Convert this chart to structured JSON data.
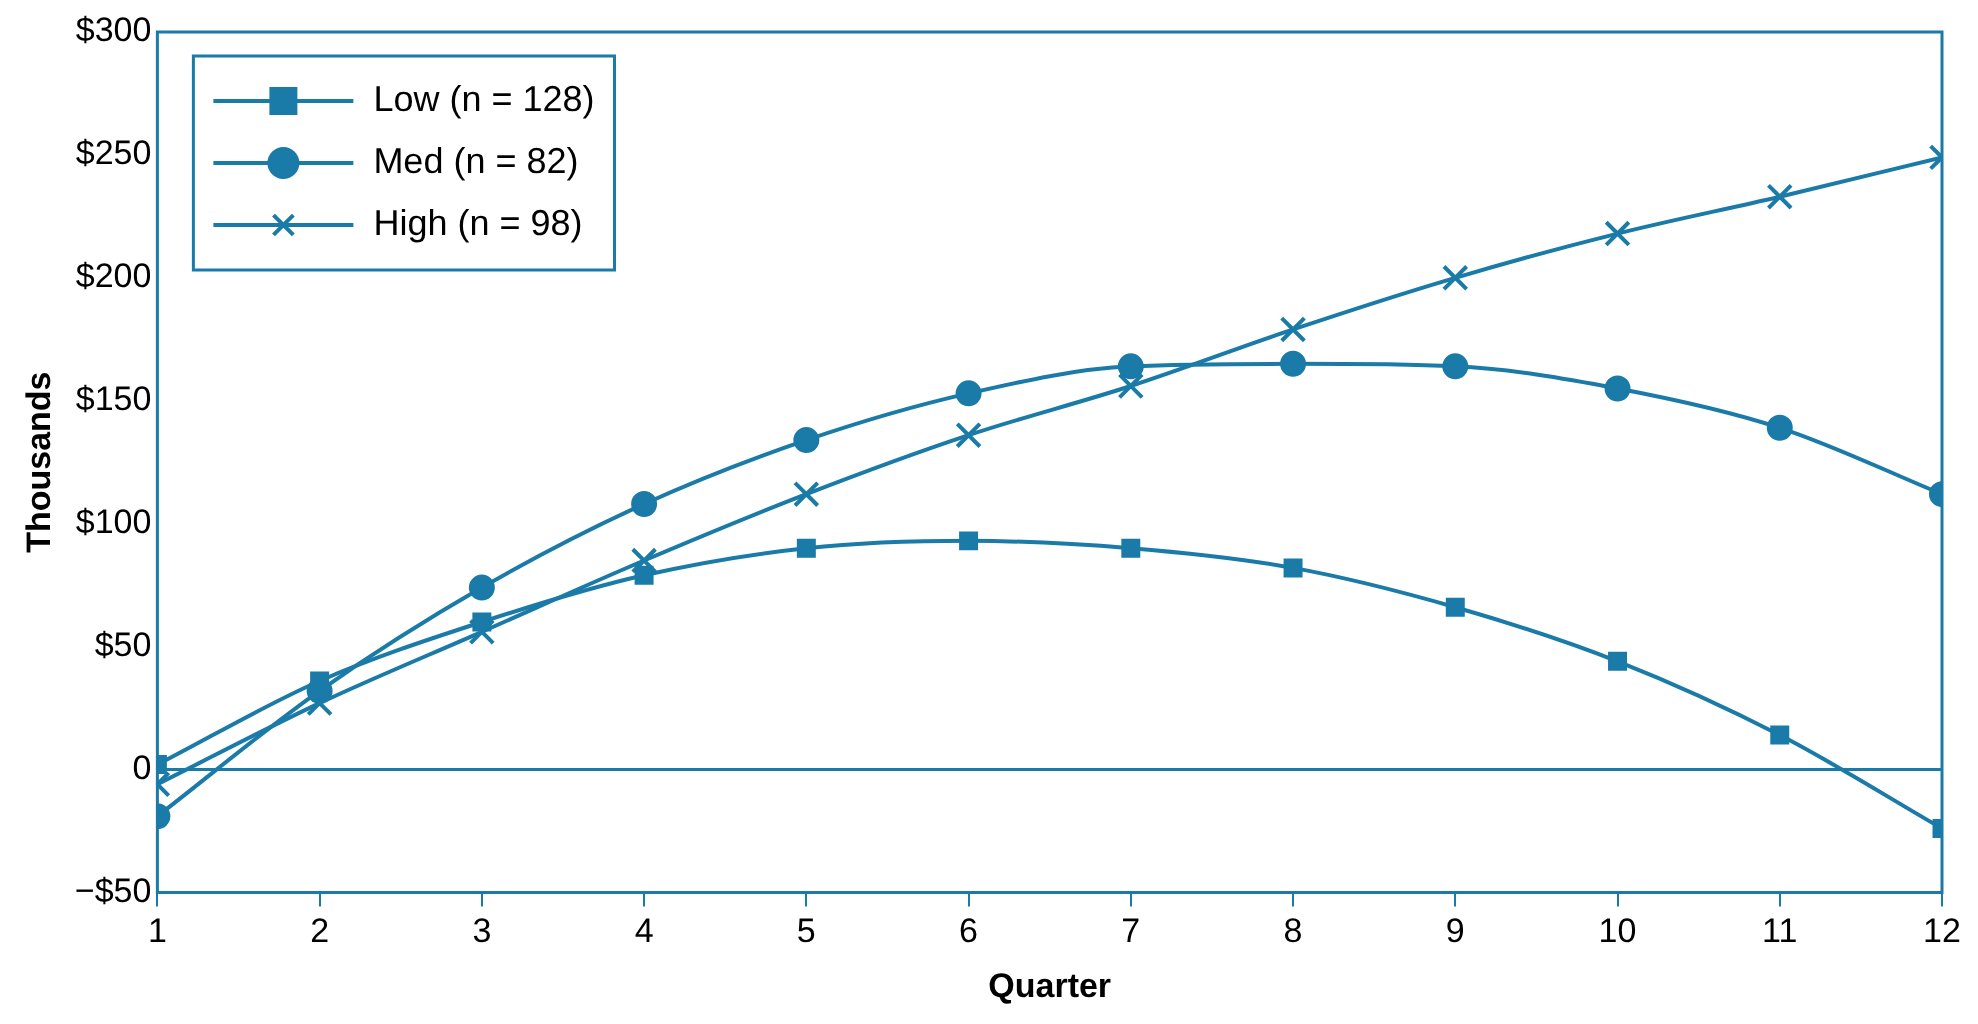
{
  "chart_data": {
    "type": "line",
    "xlabel": "Quarter",
    "ylabel": "Thousands",
    "x": [
      1,
      2,
      3,
      4,
      5,
      6,
      7,
      8,
      9,
      10,
      11,
      12
    ],
    "series": [
      {
        "name": "Low (n = 128)",
        "color": "#1a7aa8",
        "marker": "square",
        "values": [
          2,
          36,
          60,
          79,
          90,
          93,
          90,
          82,
          66,
          44,
          14,
          -24
        ]
      },
      {
        "name": "Med (n = 82)",
        "color": "#1a7aa8",
        "marker": "circle",
        "values": [
          -19,
          32,
          74,
          108,
          134,
          153,
          164,
          165,
          164,
          155,
          139,
          112
        ]
      },
      {
        "name": "High (n = 98)",
        "color": "#1a7aa8",
        "marker": "cross",
        "values": [
          -6,
          27,
          56,
          85,
          112,
          136,
          156,
          179,
          200,
          218,
          233,
          249
        ]
      }
    ],
    "xlim": [
      1,
      12
    ],
    "xticks": [
      1,
      2,
      3,
      4,
      5,
      6,
      7,
      8,
      9,
      10,
      11,
      12
    ],
    "ylim": [
      -50,
      300
    ],
    "yticks": [
      {
        "value": -50,
        "label": "−$50"
      },
      0,
      {
        "value": 50,
        "label": "$50"
      },
      {
        "value": 100,
        "label": "$100"
      },
      {
        "value": 150,
        "label": "$150"
      },
      {
        "value": 200,
        "label": "$200"
      },
      {
        "value": 250,
        "label": "$250"
      },
      {
        "value": 300,
        "label": "$300"
      }
    ],
    "ref_lines": [
      {
        "axis": "y",
        "value": 0,
        "color": "#1a7aa8"
      }
    ],
    "grid": false,
    "legend": "top left",
    "line_style": "solid"
  }
}
